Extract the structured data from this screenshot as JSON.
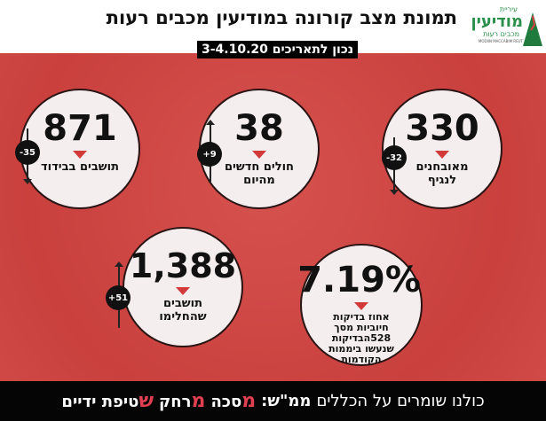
{
  "header": {
    "title": "תמונת מצב קורונה במודיעין מכבים רעות",
    "date": "נכון לתאריכים 3-4.10.20",
    "logo": {
      "line1": "עיריית",
      "line2": "מודיעין",
      "line3": "מכבים רעות",
      "line4": "MODIIN MACCABIM REUT"
    }
  },
  "stats": [
    {
      "value": "330",
      "label": "מאובחנים לנגיף",
      "change": "-32",
      "direction": "down"
    },
    {
      "value": "38",
      "label": "חולים חדשים מהיום",
      "change": "+9",
      "direction": "up"
    },
    {
      "value": "871",
      "label": "תושבים בבידוד",
      "change": "-35",
      "direction": "down"
    },
    {
      "value": "7.19%",
      "label": "אחוז בדיקות חיוביות מסך 528הבדיקות שנעשו ביממות הקודמות"
    },
    {
      "value": "1,388",
      "label": "תושבים שהחלימו",
      "change": "+51",
      "direction": "up"
    }
  ],
  "footer": {
    "text": "כולנו שומרים על הכללים",
    "mamash": "ממ\"ש:",
    "m1": "מ",
    "w1": "סכה",
    "m2": "מ",
    "w2": "רחק",
    "m3": "ש",
    "w3": "טיפת ידיים"
  },
  "colors": {
    "red": "#c9403d",
    "accent": "#e04050",
    "green": "#2a8f4a"
  }
}
